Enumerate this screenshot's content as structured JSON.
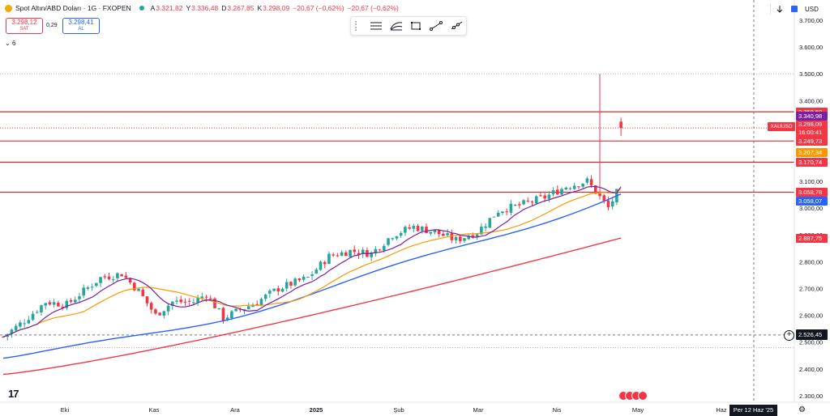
{
  "header": {
    "title": "Spot Altın/ABD Doları · 1G · FXOPEN",
    "open_k": "A",
    "open_v": "3.321,82",
    "high_k": "Y",
    "high_v": "3.336,48",
    "low_k": "D",
    "low_v": "3.267,85",
    "close_k": "K",
    "close_v": "3.298,09",
    "change": "−20,67 (−0,62%)",
    "change2": "−20,67 (−0,62%)"
  },
  "trade": {
    "sell_price": "3.298,12",
    "sell_label": "SAT",
    "spread": "0,29",
    "buy_price": "3.298,41",
    "buy_label": "AL"
  },
  "indicators": {
    "count": "6"
  },
  "toolbar": {
    "tools": [
      "horizontal-lines-icon",
      "curve-lines-icon",
      "rectangle-icon",
      "trend-line-icon",
      "ray-line-icon"
    ]
  },
  "topright": {
    "currency": "USD"
  },
  "price_axis": {
    "ticks": [
      {
        "label": "3.700,00",
        "v": 3700
      },
      {
        "label": "3.600,00",
        "v": 3600
      },
      {
        "label": "3.500,00",
        "v": 3500
      },
      {
        "label": "3.400,00",
        "v": 3400
      },
      {
        "label": "3.300,00",
        "v": 3300
      },
      {
        "label": "3.200,00",
        "v": 3200
      },
      {
        "label": "3.100,00",
        "v": 3100
      },
      {
        "label": "3.000,00",
        "v": 3000
      },
      {
        "label": "2.900,00",
        "v": 2900
      },
      {
        "label": "2.800,00",
        "v": 2800
      },
      {
        "label": "2.700,00",
        "v": 2700
      },
      {
        "label": "2.600,00",
        "v": 2600
      },
      {
        "label": "2.500,00",
        "v": 2500
      },
      {
        "label": "2.400,00",
        "v": 2400
      },
      {
        "label": "2.300,00",
        "v": 2300
      }
    ],
    "labels": {
      "h1": "3.358,50",
      "ma9": "3.340,98",
      "symbol": "XAUUSD",
      "last": "3.298,09",
      "countdown": "16:00:41",
      "h2": "3.249,73",
      "ma20": "3.207,34",
      "h3": "3.170,74",
      "h4": "3.058,78",
      "ma50": "3.058,07",
      "ma200": "2.887,75",
      "crosshair": "2.526,45"
    }
  },
  "time_axis": {
    "labels": [
      "Eki",
      "Kas",
      "Ara",
      "2025",
      "Şub",
      "Mar",
      "Nis",
      "May",
      "Haz"
    ],
    "crosshair_date": "Per 12 Haz '25"
  },
  "chart_data": {
    "type": "candlestick",
    "symbol": "XAUUSD",
    "interval": "1D",
    "ylim": [
      2300,
      3700
    ],
    "horizontal_levels": [
      3358.5,
      3249.73,
      3170.74,
      3058.78
    ],
    "moving_averages_last": {
      "ma9": 3340.98,
      "ma20": 3207.34,
      "ma50": 3058.07,
      "ma200": 2887.75
    },
    "last": {
      "open": 3321.82,
      "high": 3336.48,
      "low": 3267.85,
      "close": 3298.09
    },
    "colors": {
      "up": "#26a69a",
      "down": "#f23645",
      "ma9": "#7b1fa2",
      "ma20": "#ff9800",
      "ma50": "#2962ff",
      "ma200": "#f23645",
      "level": "#d32f2f"
    }
  }
}
